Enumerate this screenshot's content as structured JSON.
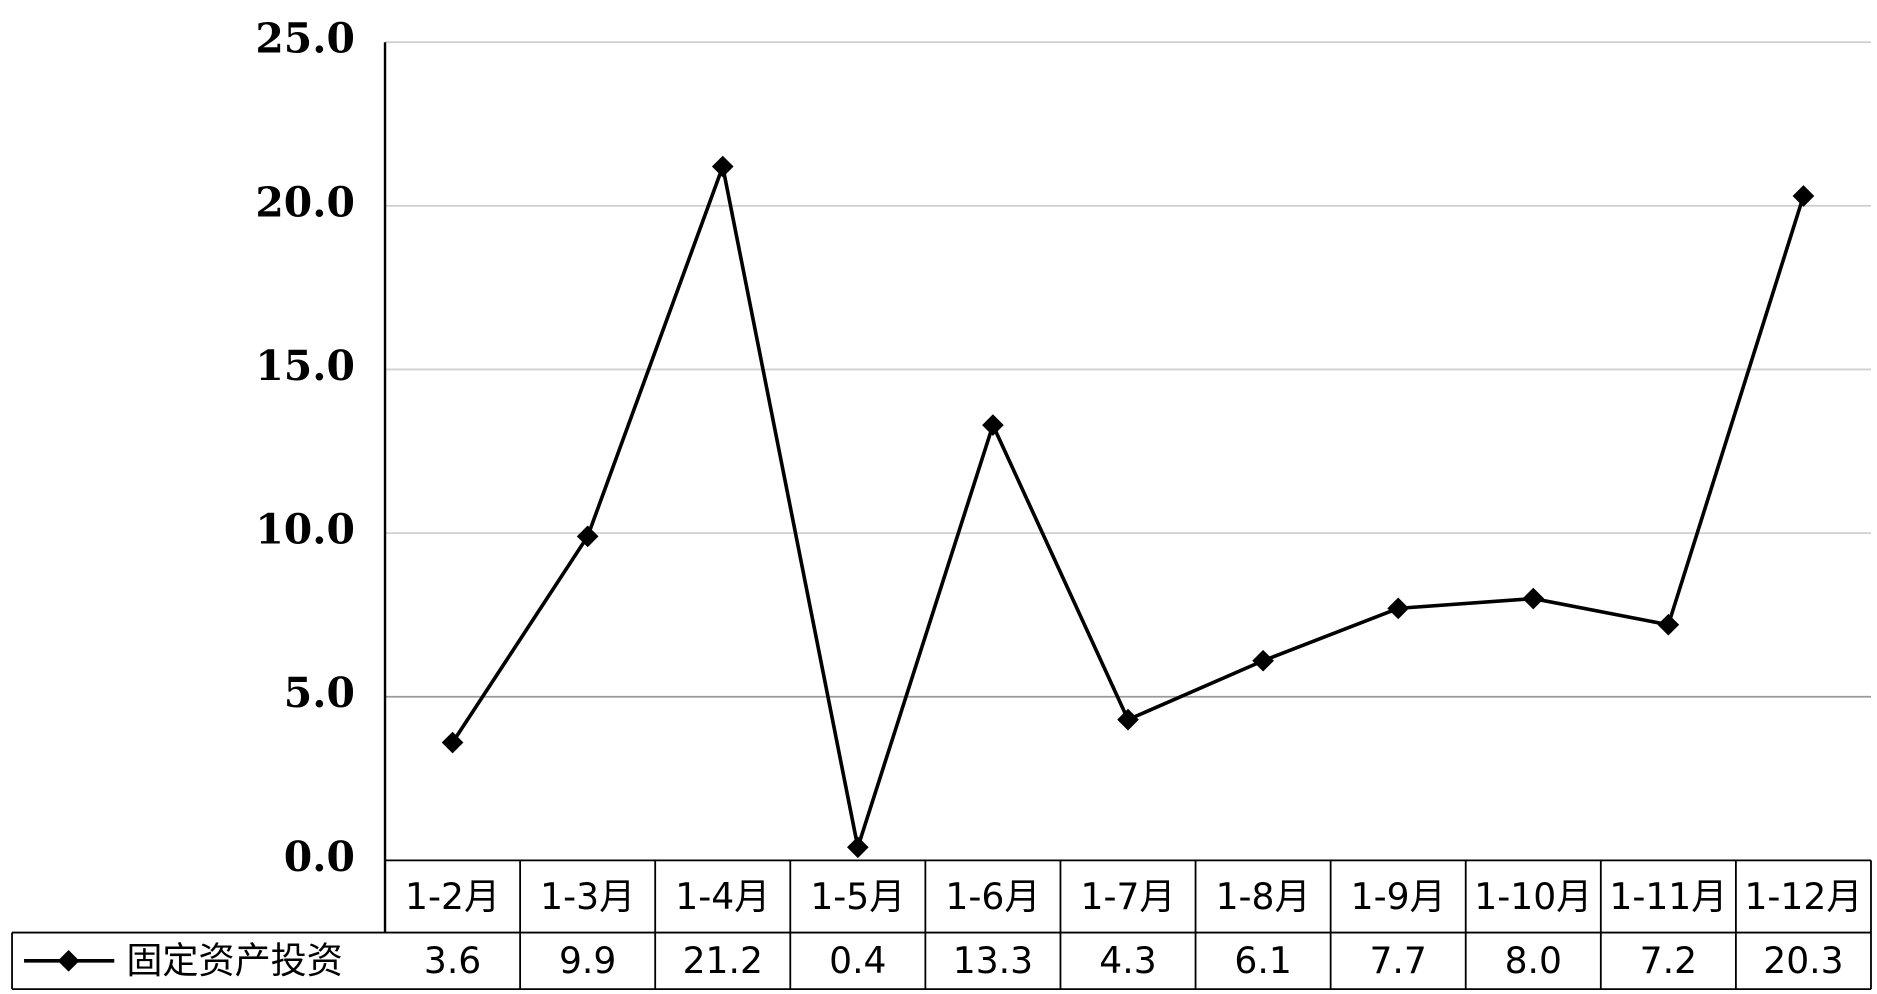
{
  "chart_data": {
    "type": "line",
    "categories": [
      "1-2月",
      "1-3月",
      "1-4月",
      "1-5月",
      "1-6月",
      "1-7月",
      "1-8月",
      "1-9月",
      "1-10月",
      "1-11月",
      "1-12月"
    ],
    "series": [
      {
        "name": "固定资产投资",
        "color": "#000000",
        "values": [
          3.6,
          9.9,
          21.2,
          0.4,
          13.3,
          4.3,
          6.1,
          7.7,
          8.0,
          7.2,
          20.3
        ],
        "value_labels": [
          "3.6",
          "9.9",
          "21.2",
          "0.4",
          "13.3",
          "4.3",
          "6.1",
          "7.7",
          "8.0",
          "7.2",
          "20.3"
        ]
      }
    ],
    "ylim": [
      0,
      25
    ],
    "yticks": [
      {
        "value": 0,
        "label": "0.0"
      },
      {
        "value": 5,
        "label": "5.0"
      },
      {
        "value": 10,
        "label": "10.0"
      },
      {
        "value": 15,
        "label": "15.0"
      },
      {
        "value": 20,
        "label": "20.0"
      },
      {
        "value": 25,
        "label": "25.0"
      }
    ],
    "grid": true
  }
}
